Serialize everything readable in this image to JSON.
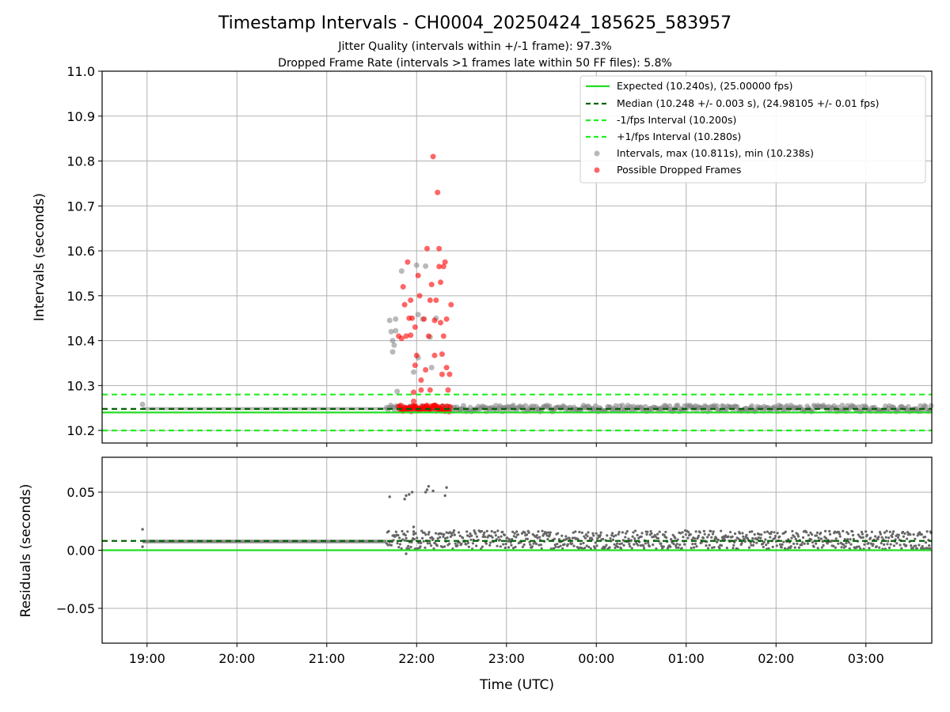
{
  "header": {
    "title": "Timestamp Intervals - CH0004_20250424_185625_583957",
    "subtitle_1": "Jitter Quality (intervals within +/-1 frame): 97.3%",
    "subtitle_2": "Dropped Frame Rate (intervals >1 frames late within 50 FF files): 5.8%"
  },
  "colors": {
    "expected": "#22dd22",
    "median": "#006400",
    "bounds": "#22ee22",
    "intervals": "#808080",
    "dropped": "#ff0000",
    "residuals": "#666666",
    "grid": "#b0b0b0"
  },
  "chart_data": [
    {
      "type": "scatter",
      "panel": "top",
      "ylabel": "Intervals (seconds)",
      "xlabel": "",
      "ylim": [
        10.172,
        11.0
      ],
      "xlim": [
        "18:30",
        "03:44"
      ],
      "grid": true,
      "legend_position": "top-right",
      "y_ticks": [
        "10.2",
        "10.3",
        "10.4",
        "10.5",
        "10.6",
        "10.7",
        "10.8",
        "10.9",
        "11.0"
      ],
      "y_tick_values": [
        10.2,
        10.3,
        10.4,
        10.5,
        10.6,
        10.7,
        10.8,
        10.9,
        11.0
      ],
      "legend": [
        "Expected (10.240s), (25.00000 fps)",
        "Median (10.248 +/- 0.003 s), (24.98105 +/- 0.01 fps)",
        "-1/fps Interval (10.200s)",
        "+1/fps Interval (10.280s)",
        "Intervals, max (10.811s), min (10.238s)",
        "Possible Dropped Frames"
      ],
      "reference_lines": {
        "expected": 10.24,
        "median": 10.248,
        "minus_1_fps": 10.2,
        "plus_1_fps": 10.28
      },
      "series": [
        {
          "name": "Intervals, max (10.811s), min (10.238s)",
          "points": [
            [
              "18:57",
              10.258
            ],
            [
              "21:42",
              10.445
            ],
            [
              "21:43",
              10.42
            ],
            [
              "21:44",
              10.4
            ],
            [
              "21:44",
              10.375
            ],
            [
              "21:45",
              10.39
            ],
            [
              "21:46",
              10.448
            ],
            [
              "21:46",
              10.422
            ],
            [
              "21:47",
              10.287
            ],
            [
              "21:50",
              10.555
            ],
            [
              "21:58",
              10.33
            ],
            [
              "22:00",
              10.568
            ],
            [
              "22:01",
              10.458
            ],
            [
              "22:01",
              10.362
            ],
            [
              "22:04",
              10.448
            ],
            [
              "22:06",
              10.566
            ],
            [
              "22:09",
              10.408
            ],
            [
              "22:10",
              10.34
            ],
            [
              "22:13",
              10.45
            ]
          ]
        },
        {
          "name": "Possible Dropped Frames",
          "points": [
            [
              "21:48",
              10.41
            ],
            [
              "21:50",
              10.405
            ],
            [
              "21:51",
              10.52
            ],
            [
              "21:52",
              10.48
            ],
            [
              "21:53",
              10.41
            ],
            [
              "21:54",
              10.575
            ],
            [
              "21:55",
              10.45
            ],
            [
              "21:56",
              10.49
            ],
            [
              "21:56",
              10.412
            ],
            [
              "21:57",
              10.45
            ],
            [
              "21:58",
              10.265
            ],
            [
              "21:58",
              10.285
            ],
            [
              "21:59",
              10.345
            ],
            [
              "21:59",
              10.43
            ],
            [
              "22:00",
              10.367
            ],
            [
              "22:01",
              10.545
            ],
            [
              "22:02",
              10.5
            ],
            [
              "22:03",
              10.312
            ],
            [
              "22:03",
              10.29
            ],
            [
              "22:05",
              10.448
            ],
            [
              "22:06",
              10.335
            ],
            [
              "22:07",
              10.605
            ],
            [
              "22:08",
              10.41
            ],
            [
              "22:09",
              10.29
            ],
            [
              "22:09",
              10.49
            ],
            [
              "22:10",
              10.525
            ],
            [
              "22:11",
              10.81
            ],
            [
              "22:12",
              10.445
            ],
            [
              "22:12",
              10.367
            ],
            [
              "22:13",
              10.49
            ],
            [
              "22:14",
              10.73
            ],
            [
              "22:15",
              10.605
            ],
            [
              "22:15",
              10.565
            ],
            [
              "22:16",
              10.53
            ],
            [
              "22:16",
              10.44
            ],
            [
              "22:17",
              10.37
            ],
            [
              "22:17",
              10.325
            ],
            [
              "22:18",
              10.565
            ],
            [
              "22:18",
              10.41
            ],
            [
              "22:19",
              10.575
            ],
            [
              "22:20",
              10.448
            ],
            [
              "22:20",
              10.34
            ],
            [
              "22:21",
              10.29
            ],
            [
              "22:22",
              10.325
            ],
            [
              "22:23",
              10.48
            ]
          ]
        }
      ],
      "baseline_band": {
        "description_x_range": [
          "18:57",
          "03:44"
        ],
        "y_min": 10.238,
        "y_max": 10.258,
        "y_center": 10.248
      }
    },
    {
      "type": "scatter",
      "panel": "bottom",
      "xlabel": "Time (UTC)",
      "ylabel": "Residuals (seconds)",
      "ylim": [
        -0.08,
        0.08
      ],
      "xlim": [
        "18:30",
        "03:44"
      ],
      "grid": true,
      "x_ticks": [
        "19:00",
        "20:00",
        "21:00",
        "22:00",
        "23:00",
        "00:00",
        "01:00",
        "02:00",
        "03:00"
      ],
      "y_ticks": [
        "0.05",
        "0.00",
        "−0.05"
      ],
      "y_tick_values": [
        0.05,
        0.0,
        -0.05
      ],
      "reference_lines": {
        "expected": 0.0,
        "median": 0.008
      },
      "series": [
        {
          "name": "Residuals",
          "points": [
            [
              "18:57",
              0.018
            ],
            [
              "18:57",
              0.003
            ],
            [
              "21:42",
              0.046
            ],
            [
              "21:52",
              0.044
            ],
            [
              "21:53",
              0.047
            ],
            [
              "21:55",
              0.048
            ],
            [
              "21:57",
              0.05
            ],
            [
              "21:58",
              0.016
            ],
            [
              "21:58",
              0.02
            ],
            [
              "21:53",
              -0.003
            ],
            [
              "22:06",
              0.05
            ],
            [
              "22:07",
              0.052
            ],
            [
              "22:08",
              0.055
            ],
            [
              "22:11",
              0.051
            ],
            [
              "22:19",
              0.047
            ],
            [
              "22:20",
              0.054
            ]
          ]
        }
      ],
      "baseline_band": {
        "x_range": [
          "21:40",
          "03:44"
        ],
        "y_min": 0.0,
        "y_max": 0.017
      }
    }
  ]
}
